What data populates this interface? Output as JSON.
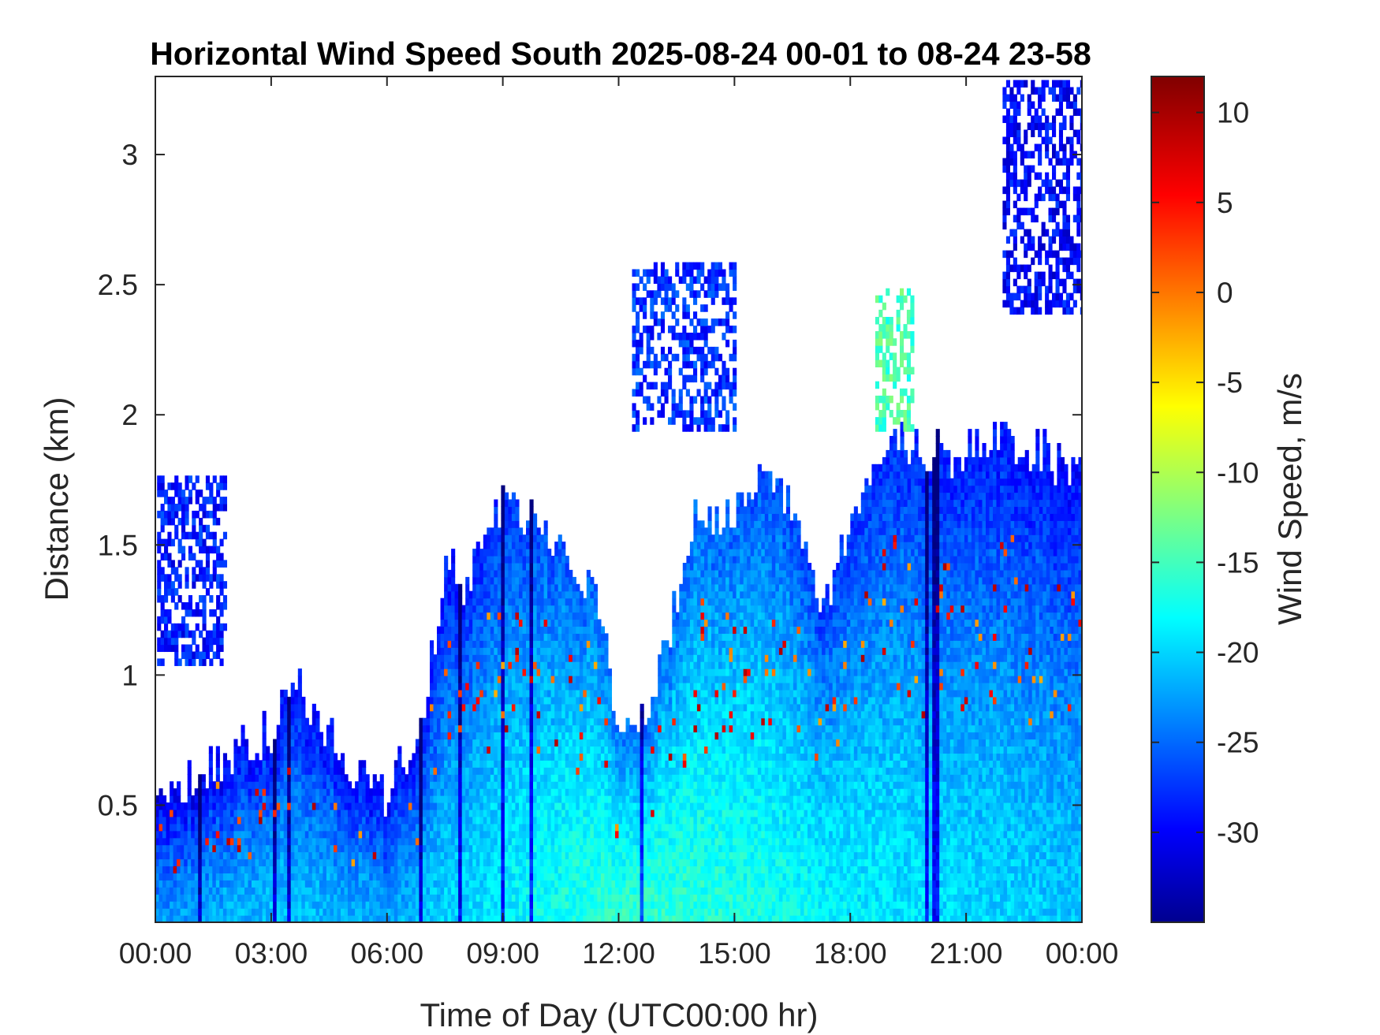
{
  "chart_data": {
    "type": "heatmap",
    "title": "Horizontal Wind Speed South 2025-08-24 00-01 to 08-24 23-58",
    "xlabel": "Time of Day (UTC00:00 hr)",
    "ylabel": "Distance (km)",
    "x_units": "hours",
    "xlim": [
      0,
      24
    ],
    "ylim": [
      0.05,
      3.3
    ],
    "x_ticks": [
      0,
      3,
      6,
      9,
      12,
      15,
      18,
      21,
      24
    ],
    "x_tick_labels": [
      "00:00",
      "03:00",
      "06:00",
      "09:00",
      "12:00",
      "15:00",
      "18:00",
      "21:00",
      "00:00"
    ],
    "y_ticks": [
      0.5,
      1,
      1.5,
      2,
      2.5,
      3
    ],
    "y_tick_labels": [
      "0.5",
      "1",
      "1.5",
      "2",
      "2.5",
      "3"
    ],
    "colorbar": {
      "label": "Wind Speed, m/s",
      "range": [
        -35,
        12
      ],
      "ticks": [
        10,
        5,
        0,
        -5,
        -10,
        -15,
        -20,
        -25,
        -30
      ],
      "tick_labels": [
        "10",
        "5",
        "0",
        "-5",
        "-10",
        "-15",
        "-20",
        "-25",
        "-30"
      ],
      "colormap": "jet",
      "colors": [
        "#00008F",
        "#0000FF",
        "#0080FF",
        "#00FFFF",
        "#80FF80",
        "#FFFF00",
        "#FF8000",
        "#FF0000",
        "#800000"
      ]
    },
    "grid": false,
    "approx_data_top_km": {
      "hours": [
        0,
        1,
        2,
        3,
        3.5,
        4,
        5,
        6,
        6.5,
        7,
        7.5,
        8,
        8.5,
        9,
        10,
        11,
        11.5,
        12,
        12.5,
        13,
        13.5,
        14,
        14.5,
        15,
        15.5,
        16,
        16.5,
        17,
        17.5,
        18,
        18.5,
        19,
        19.5,
        20,
        20.5,
        21,
        21.5,
        22,
        22.5,
        23,
        23.5,
        24
      ],
      "top_km": [
        0.55,
        0.6,
        0.68,
        0.78,
        0.95,
        0.9,
        0.65,
        0.55,
        0.7,
        0.85,
        1.45,
        1.35,
        1.55,
        1.65,
        1.6,
        1.4,
        1.25,
        0.75,
        0.8,
        1.0,
        1.3,
        1.6,
        1.55,
        1.65,
        1.75,
        1.7,
        1.65,
        1.35,
        1.3,
        1.6,
        1.8,
        1.85,
        1.9,
        1.85,
        1.85,
        1.85,
        1.9,
        1.9,
        1.85,
        1.85,
        1.8,
        1.8
      ]
    },
    "approx_surface_speed_ms": {
      "hours": [
        0,
        3,
        6,
        9,
        12,
        15,
        18,
        21,
        24
      ],
      "speed": [
        -22,
        -20,
        -21,
        -18,
        -15,
        -16,
        -18,
        -19,
        -20
      ]
    },
    "isolated_regions": [
      {
        "name": "early-aloft-cluster",
        "x_range": [
          0,
          1.8
        ],
        "y_range": [
          1.05,
          1.78
        ],
        "speed": -28
      },
      {
        "name": "midday-aloft-cluster",
        "x_range": [
          12.3,
          15
        ],
        "y_range": [
          1.95,
          2.6
        ],
        "speed": -27
      },
      {
        "name": "evening-aloft-cluster",
        "x_range": [
          18.6,
          19.6
        ],
        "y_range": [
          1.95,
          2.5
        ],
        "speed": -14
      },
      {
        "name": "late-high-streaks",
        "x_range": [
          21.9,
          24
        ],
        "y_range": [
          2.4,
          3.3
        ],
        "speed": -29
      }
    ]
  }
}
